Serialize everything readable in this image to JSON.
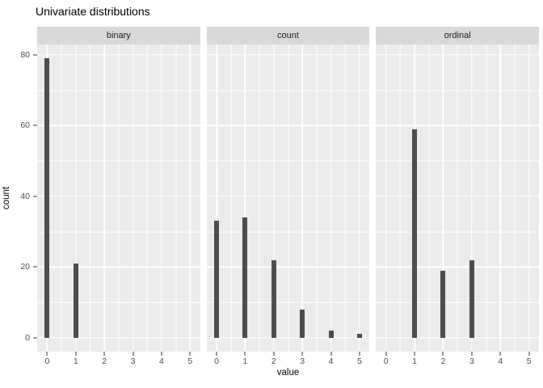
{
  "plot": {
    "title": "Univariate distributions",
    "x_label": "value",
    "y_label": "count"
  },
  "chart_data": {
    "type": "bar",
    "description": "Faceted histogram-style bar chart with three panels sharing x and y axes",
    "facets": [
      {
        "label": "binary",
        "points": [
          {
            "x": 0,
            "count": 79
          },
          {
            "x": 1,
            "count": 21
          }
        ]
      },
      {
        "label": "count",
        "points": [
          {
            "x": 0,
            "count": 33
          },
          {
            "x": 1,
            "count": 34
          },
          {
            "x": 2,
            "count": 22
          },
          {
            "x": 3,
            "count": 8
          },
          {
            "x": 4,
            "count": 2
          },
          {
            "x": 5,
            "count": 1
          }
        ]
      },
      {
        "label": "ordinal",
        "points": [
          {
            "x": 1,
            "count": 59
          },
          {
            "x": 2,
            "count": 19
          },
          {
            "x": 3,
            "count": 22
          }
        ]
      }
    ],
    "title": "Univariate distributions",
    "xlabel": "value",
    "ylabel": "count",
    "x_ticks": [
      0,
      1,
      2,
      3,
      4,
      5
    ],
    "y_ticks": [
      0,
      20,
      40,
      60,
      80
    ],
    "x_range": [
      -0.35,
      5.35
    ],
    "y_range": [
      -3.95,
      82.95
    ],
    "grid": "major-and-minor, white on grey panel",
    "legend": "none",
    "colors": {
      "bar": "#4D4D4D",
      "panel_bg": "#EBEBEB",
      "strip_bg": "#D9D9D9",
      "gridline": "#FFFFFF",
      "tick_text": "#4D4D4D",
      "tick_mark": "#333333",
      "title_text": "#000000",
      "background": "#FFFFFF"
    }
  }
}
